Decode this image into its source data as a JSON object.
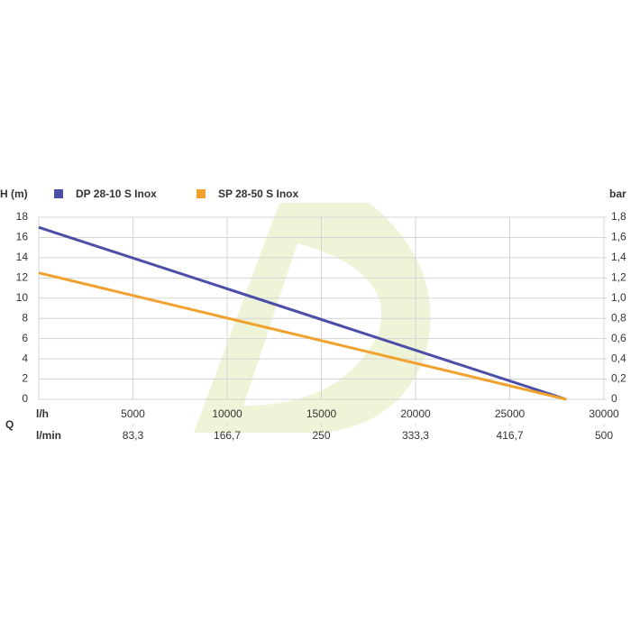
{
  "chart_data": {
    "type": "line",
    "y_label": "H (m)",
    "y2_label": "bar",
    "x_label": "l/h",
    "x2_label": "l/min",
    "q_label": "Q",
    "x": [
      0,
      28000
    ],
    "series": [
      {
        "name": "DP 28-10 S Inox",
        "color": "#4a4ea6",
        "values": [
          17,
          0
        ]
      },
      {
        "name": "SP 28-50 S Inox",
        "color": "#f0a12e",
        "values": [
          12.5,
          0
        ]
      }
    ],
    "xlim": [
      0,
      30000
    ],
    "xticks": [
      5000,
      10000,
      15000,
      20000,
      25000,
      30000
    ],
    "x2lim": [
      0,
      500
    ],
    "x2ticks": [
      {
        "value": 83.3,
        "label": "83,3"
      },
      {
        "value": 166.7,
        "label": "166,7"
      },
      250,
      {
        "value": 333.3,
        "label": "333,3"
      },
      {
        "value": 416.7,
        "label": "416,7"
      },
      500
    ],
    "ylim": [
      0,
      18
    ],
    "yticks": [
      0,
      2,
      4,
      6,
      8,
      10,
      12,
      14,
      16,
      18
    ],
    "y2lim": [
      0,
      1.8
    ],
    "y2ticks": [
      0,
      {
        "value": 0.2,
        "label": "0,2"
      },
      {
        "value": 0.4,
        "label": "0,4"
      },
      {
        "value": 0.6,
        "label": "0,6"
      },
      {
        "value": 0.8,
        "label": "0,8"
      },
      {
        "value": 1.0,
        "label": "1,0"
      },
      {
        "value": 1.2,
        "label": "1,2"
      },
      {
        "value": 1.4,
        "label": "1,4"
      },
      {
        "value": 1.6,
        "label": "1,6"
      },
      {
        "value": 1.8,
        "label": "1,8"
      }
    ],
    "grid": true
  }
}
